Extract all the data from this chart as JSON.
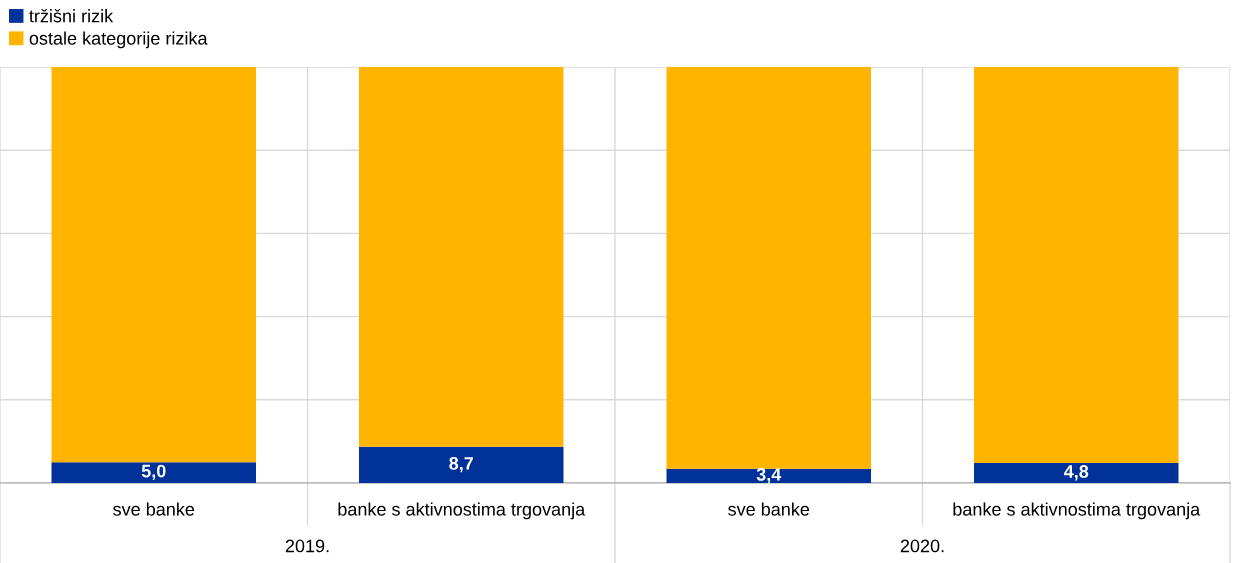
{
  "chart_data": {
    "type": "bar",
    "stacked": true,
    "categories": [
      "sve banke",
      "banke s aktivnostima trgovanja",
      "sve banke",
      "banke s aktivnostima trgovanja"
    ],
    "series": [
      {
        "name": "tržišni rizik",
        "color": "#003299",
        "values": [
          5.0,
          8.7,
          3.4,
          4.8
        ],
        "value_labels": [
          "5,0",
          "8,7",
          "3,4",
          "4,8"
        ]
      },
      {
        "name": "ostale kategorije rizika",
        "color": "#ffb400",
        "values": [
          95.0,
          91.3,
          96.6,
          95.2
        ]
      }
    ],
    "annotations": [
      "2019.",
      "2020."
    ],
    "ylim": [
      0,
      100
    ],
    "yticks": [
      {
        "value": 0,
        "label": null
      },
      {
        "value": 20,
        "label": null
      },
      {
        "value": 40,
        "label": null
      },
      {
        "value": 60,
        "label": null
      },
      {
        "value": 80,
        "label": null
      },
      {
        "value": 100,
        "label": null
      }
    ],
    "tick_labels": "x",
    "grid": true,
    "legend": "top left"
  }
}
